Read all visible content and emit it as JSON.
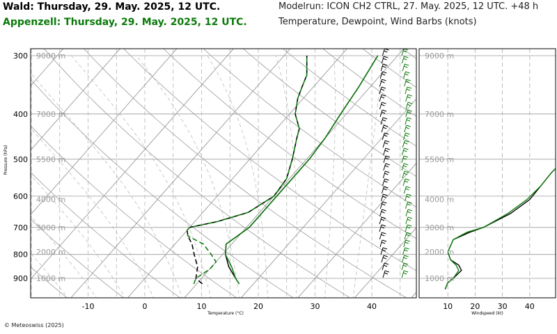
{
  "header": {
    "station_black": "Wald: Thursday, 29. May. 2025, 12 UTC.",
    "station_green": "Appenzell: Thursday, 29. May. 2025, 12 UTC.",
    "model_run": "Modelrun: ICON CH2 CTRL, 27. May. 2025, 12 UTC. +48 h",
    "variables": "Temperature, Dewpoint, Wind Barbs (knots)"
  },
  "copyright": "© Meteoswiss (2025)",
  "colors": {
    "station_black": "#000000",
    "station_green": "#0a7a0a",
    "grid": "#9a9a9a"
  },
  "chart_data": [
    {
      "type": "line",
      "subtype": "skew-t",
      "xlabel": "Temperature (°C)",
      "ylabel": "Pressure (hPa)",
      "pressure_ticks": [
        300,
        400,
        500,
        600,
        700,
        800,
        900
      ],
      "temperature_ticks": [
        -10,
        0,
        10,
        20,
        30,
        40
      ],
      "altitude_labels": [
        {
          "label": "9000 m",
          "p": 300
        },
        {
          "label": "7000 m",
          "p": 400
        },
        {
          "label": "5500 m",
          "p": 500
        },
        {
          "label": "4000 m",
          "p": 610
        },
        {
          "label": "3000 m",
          "p": 700
        },
        {
          "label": "2000 m",
          "p": 790
        },
        {
          "label": "1000 m",
          "p": 900
        }
      ],
      "ylim": [
        295,
        970
      ],
      "series": [
        {
          "station": "black",
          "variable": "temperature",
          "points": [
            [
              925,
              17.5
            ],
            [
              900,
              16
            ],
            [
              850,
              13
            ],
            [
              800,
              10.5
            ],
            [
              760,
              9
            ],
            [
              720,
              10
            ],
            [
              700,
              10.5
            ],
            [
              650,
              10.5
            ],
            [
              600,
              10.5
            ],
            [
              550,
              10.5
            ],
            [
              500,
              10.5
            ],
            [
              450,
              10
            ],
            [
              400,
              9
            ],
            [
              350,
              8
            ],
            [
              300,
              6.5
            ]
          ]
        },
        {
          "station": "green",
          "variable": "temperature",
          "points": [
            [
              925,
              17.5
            ],
            [
              900,
              16
            ],
            [
              850,
              13.5
            ],
            [
              800,
              10.5
            ],
            [
              760,
              9
            ],
            [
              720,
              10
            ],
            [
              700,
              10.5
            ],
            [
              650,
              10.5
            ],
            [
              600,
              10.5
            ],
            [
              550,
              10.5
            ],
            [
              500,
              10.5
            ],
            [
              450,
              10
            ],
            [
              400,
              9
            ],
            [
              350,
              8
            ],
            [
              300,
              6.5
            ]
          ]
        },
        {
          "station": "black",
          "variable": "dewpoint",
          "points": [
            [
              925,
              11
            ],
            [
              900,
              9
            ],
            [
              850,
              7.5
            ],
            [
              800,
              5
            ],
            [
              760,
              3
            ],
            [
              730,
              1
            ],
            [
              710,
              0
            ],
            [
              700,
              0
            ],
            [
              680,
              4
            ],
            [
              650,
              8
            ],
            [
              600,
              10
            ],
            [
              550,
              9.5
            ],
            [
              500,
              7.5
            ],
            [
              450,
              5
            ],
            [
              430,
              4
            ],
            [
              400,
              1
            ],
            [
              370,
              -1
            ],
            [
              350,
              -2
            ],
            [
              330,
              -3
            ],
            [
              300,
              -6
            ]
          ]
        },
        {
          "station": "green",
          "variable": "dewpoint",
          "points": [
            [
              925,
              9.5
            ],
            [
              900,
              9
            ],
            [
              860,
              10
            ],
            [
              830,
              10
            ],
            [
              800,
              8
            ],
            [
              760,
              5
            ],
            [
              730,
              1
            ],
            [
              710,
              0
            ],
            [
              700,
              0
            ],
            [
              680,
              4
            ],
            [
              650,
              8
            ],
            [
              600,
              10
            ],
            [
              550,
              9.5
            ],
            [
              500,
              7.5
            ],
            [
              450,
              5
            ],
            [
              430,
              4
            ],
            [
              400,
              1
            ],
            [
              370,
              -1
            ],
            [
              350,
              -2
            ],
            [
              330,
              -3
            ],
            [
              300,
              -6
            ]
          ]
        }
      ]
    },
    {
      "type": "line",
      "xlabel": "Windspeed (kt)",
      "x_ticks": [
        10,
        20,
        30,
        40
      ],
      "xlim": [
        0,
        50
      ],
      "series": [
        {
          "station": "black",
          "variable": "windspeed",
          "points": [
            [
              0,
              9
            ],
            [
              600,
              10
            ],
            [
              1000,
              12
            ],
            [
              1300,
              15
            ],
            [
              1500,
              14
            ],
            [
              1700,
              11
            ],
            [
              2000,
              10
            ],
            [
              2500,
              12
            ],
            [
              2800,
              18
            ],
            [
              3000,
              23
            ],
            [
              3500,
              33
            ],
            [
              4000,
              40
            ],
            [
              4500,
              44
            ],
            [
              5000,
              48
            ],
            [
              5300,
              51
            ]
          ]
        },
        {
          "station": "green",
          "variable": "windspeed",
          "points": [
            [
              0,
              9
            ],
            [
              600,
              10
            ],
            [
              1000,
              12
            ],
            [
              1300,
              14
            ],
            [
              1500,
              13
            ],
            [
              1700,
              11
            ],
            [
              2000,
              10
            ],
            [
              2500,
              12
            ],
            [
              2800,
              17
            ],
            [
              3000,
              23
            ],
            [
              3500,
              32
            ],
            [
              4000,
              39
            ],
            [
              4500,
              44
            ],
            [
              5000,
              48
            ],
            [
              5300,
              51
            ]
          ]
        }
      ]
    }
  ]
}
